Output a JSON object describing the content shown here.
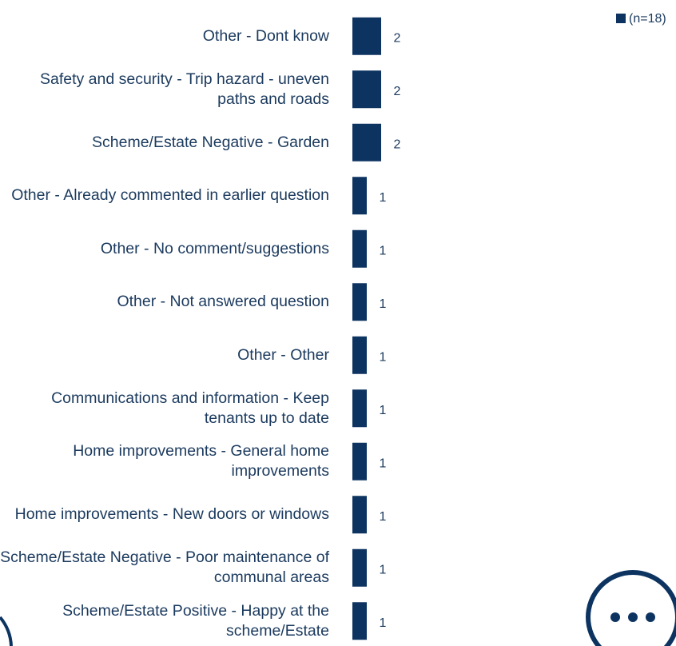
{
  "chart_data": {
    "type": "bar",
    "orientation": "horizontal",
    "categories": [
      "Other - Dont know",
      "Safety and security - Trip hazard - uneven paths and roads",
      "Scheme/Estate Negative - Garden",
      "Other - Already commented in earlier question",
      "Other - No comment/suggestions",
      "Other - Not answered question",
      "Other - Other",
      "Communications and information - Keep tenants up to date",
      "Home improvements - General home improvements",
      "Home improvements - New doors or windows",
      "Scheme/Estate Negative - Poor maintenance of communal areas",
      "Scheme/Estate Positive - Happy at the scheme/Estate"
    ],
    "series": [
      {
        "name": "(n=18)",
        "color": "#0d3461",
        "values": [
          2,
          2,
          2,
          1,
          1,
          1,
          1,
          1,
          1,
          1,
          1,
          1
        ]
      }
    ],
    "legend": "top-right"
  }
}
